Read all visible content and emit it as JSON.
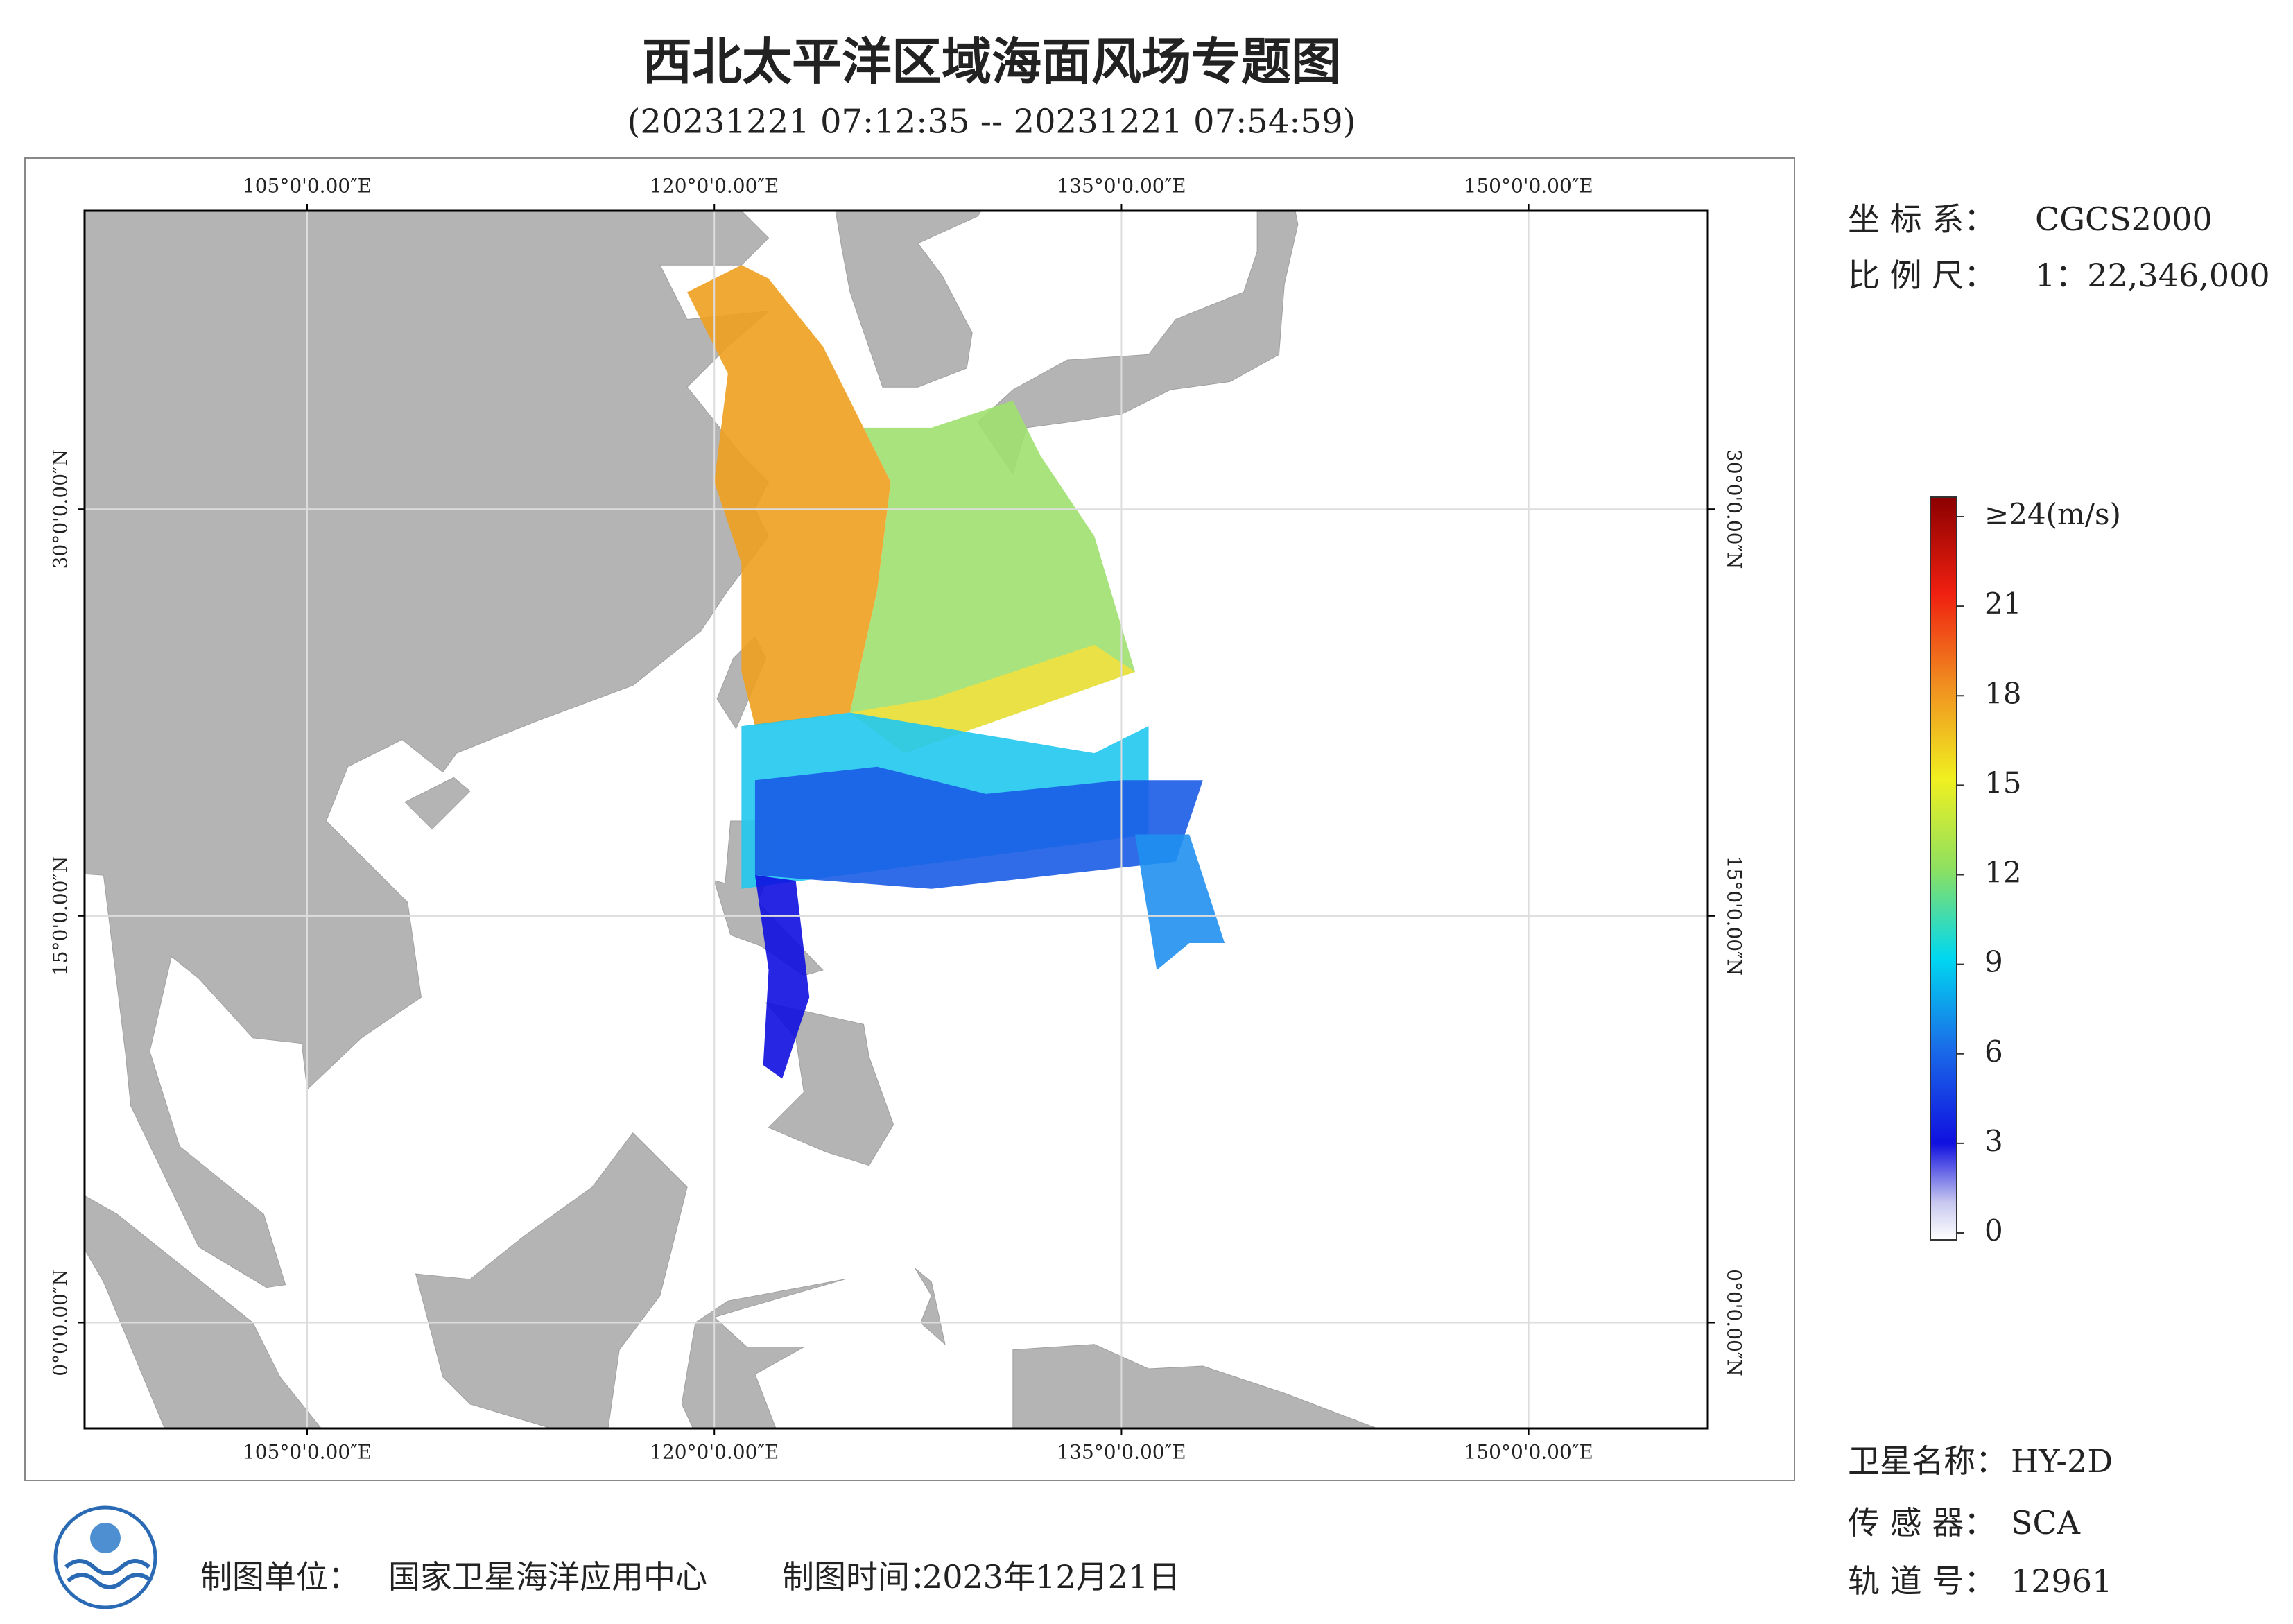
{
  "header": {
    "title": "西北太平洋区域海面风场专题图",
    "subtitle": "(20231221 07:12:35 -- 20231221 07:54:59)"
  },
  "map": {
    "lon_range": [
      96.8,
      156.6
    ],
    "lat_range": [
      -3.9,
      41.0
    ],
    "lon_ticks": [
      {
        "value": 105,
        "label": "105°0'0.00″E"
      },
      {
        "value": 120,
        "label": "120°0'0.00″E"
      },
      {
        "value": 135,
        "label": "135°0'0.00″E"
      },
      {
        "value": 150,
        "label": "150°0'0.00″E"
      }
    ],
    "lat_ticks": [
      {
        "value": 0,
        "label": "0°0'0.00″N"
      },
      {
        "value": 15,
        "label": "15°0'0.00″N"
      },
      {
        "value": 30,
        "label": "30°0'0.00″N"
      }
    ]
  },
  "info": {
    "crs_label": "坐 标 系：",
    "crs": "CGCS2000",
    "scale_label": "比 例 尺：",
    "scale": "1：22,346,000"
  },
  "colorbar": {
    "ticks": [
      0,
      3,
      6,
      9,
      12,
      15,
      18,
      21,
      {
        "value": 24,
        "label": "≥24(m/s)"
      }
    ]
  },
  "satellite": {
    "name_label": "卫星名称：",
    "name": "HY-2D",
    "sensor_label": "传 感 器：",
    "sensor": "SCA",
    "orbit_label": "轨 道 号：",
    "orbit": "12961"
  },
  "footer": {
    "producer_label": "制图单位：",
    "producer": "国家卫星海洋应用中心",
    "date_label": "制图时间：",
    "date": "2023年12月21日"
  }
}
